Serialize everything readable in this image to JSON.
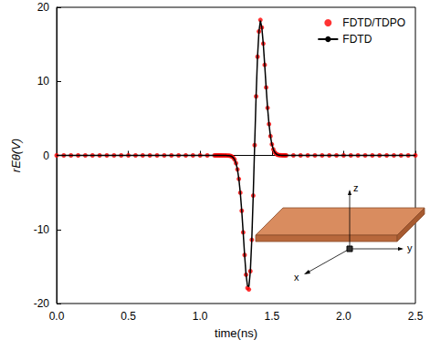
{
  "chart_data": {
    "type": "line",
    "x_label": "time(ns)",
    "y_label": "rEθ(V)",
    "annotations": [
      "x",
      "y",
      "z"
    ],
    "xlim": [
      0,
      2.5
    ],
    "xticks": [
      {
        "value": 0,
        "label": "0.0"
      },
      {
        "value": 0.5,
        "label": "0.5"
      },
      {
        "value": 1,
        "label": "1.0"
      },
      {
        "value": 1.5,
        "label": "1.5"
      },
      {
        "value": 2,
        "label": "2.0"
      },
      {
        "value": 2.5,
        "label": "2.5"
      }
    ],
    "ylim": [
      -20,
      20
    ],
    "yticks": [
      -20,
      -10,
      0,
      10,
      20
    ],
    "grid": false,
    "legend": "upper right",
    "x": [
      0,
      0.05,
      0.1,
      0.15,
      0.2,
      0.25,
      0.3,
      0.35,
      0.4,
      0.45,
      0.5,
      0.55,
      0.6,
      0.65,
      0.7,
      0.75,
      0.8,
      0.85,
      0.9,
      0.95,
      1,
      1.05,
      1.1,
      1.11,
      1.12,
      1.13,
      1.14,
      1.15,
      1.16,
      1.17,
      1.18,
      1.19,
      1.2,
      1.21,
      1.22,
      1.23,
      1.24,
      1.25,
      1.26,
      1.27,
      1.28,
      1.29,
      1.3,
      1.31,
      1.32,
      1.33,
      1.34,
      1.35,
      1.36,
      1.37,
      1.38,
      1.39,
      1.4,
      1.41,
      1.42,
      1.43,
      1.44,
      1.45,
      1.46,
      1.47,
      1.48,
      1.49,
      1.5,
      1.51,
      1.52,
      1.53,
      1.54,
      1.55,
      1.56,
      1.57,
      1.58,
      1.59,
      1.6,
      1.65,
      1.7,
      1.75,
      1.8,
      1.85,
      1.9,
      1.95,
      2,
      2.05,
      2.1,
      2.15,
      2.2,
      2.25,
      2.3,
      2.35,
      2.4,
      2.45,
      2.5
    ],
    "series": [
      {
        "name": "FDTD/TDPO",
        "type": "scatter",
        "color": "#ff0000",
        "marker": "circle",
        "values": [
          0,
          0,
          0,
          0,
          0,
          0,
          0,
          0,
          0,
          0,
          0,
          0,
          0,
          0,
          0,
          0,
          0,
          0,
          0,
          0,
          0,
          0,
          0,
          0,
          0,
          0,
          0,
          0,
          -0.01,
          -0.01,
          -0.01,
          -0.02,
          -0.02,
          -0.06,
          -0.13,
          -0.29,
          -0.55,
          -1.05,
          -1.89,
          -3.18,
          -5.04,
          -7.48,
          -10.39,
          -13.45,
          -16.11,
          -17.9,
          -18.1,
          -15.63,
          -11.39,
          -5.43,
          1.38,
          7.97,
          13.32,
          16.74,
          18.3,
          17.27,
          15.1,
          12.23,
          9.18,
          6.42,
          4.23,
          2.6,
          1.5,
          0.82,
          0.42,
          0.2,
          0.09,
          0.04,
          0.02,
          0.01,
          0,
          0,
          0,
          0,
          0,
          0,
          0,
          0,
          0,
          0,
          0,
          0,
          0,
          0,
          0,
          0,
          0,
          0,
          0,
          0,
          0
        ]
      },
      {
        "name": "FDTD",
        "type": "line",
        "color": "#000000",
        "line_style": "solid",
        "values": [
          0,
          0,
          0,
          0,
          0,
          0,
          0,
          0,
          0,
          0,
          0,
          0,
          0,
          0,
          0,
          0,
          0,
          0,
          0,
          0,
          0,
          0,
          0,
          0,
          0,
          0,
          0,
          0,
          -0.01,
          -0.01,
          -0.01,
          -0.02,
          -0.02,
          -0.06,
          -0.13,
          -0.29,
          -0.55,
          -1.05,
          -1.89,
          -3.18,
          -5.04,
          -7.48,
          -10.39,
          -13.45,
          -16.11,
          -17.6,
          -17.7,
          -15.63,
          -11.39,
          -5.43,
          1.38,
          7.97,
          13.32,
          16.74,
          18.2,
          17.27,
          15.1,
          12.23,
          9.18,
          6.42,
          4.23,
          2.6,
          1.5,
          0.82,
          0.42,
          0.2,
          0.09,
          0.04,
          0.02,
          0.01,
          0,
          0,
          0,
          0,
          0,
          0,
          0,
          0,
          0,
          0,
          0,
          0,
          0,
          0,
          0,
          0,
          0,
          0,
          0,
          0,
          0
        ]
      }
    ]
  }
}
